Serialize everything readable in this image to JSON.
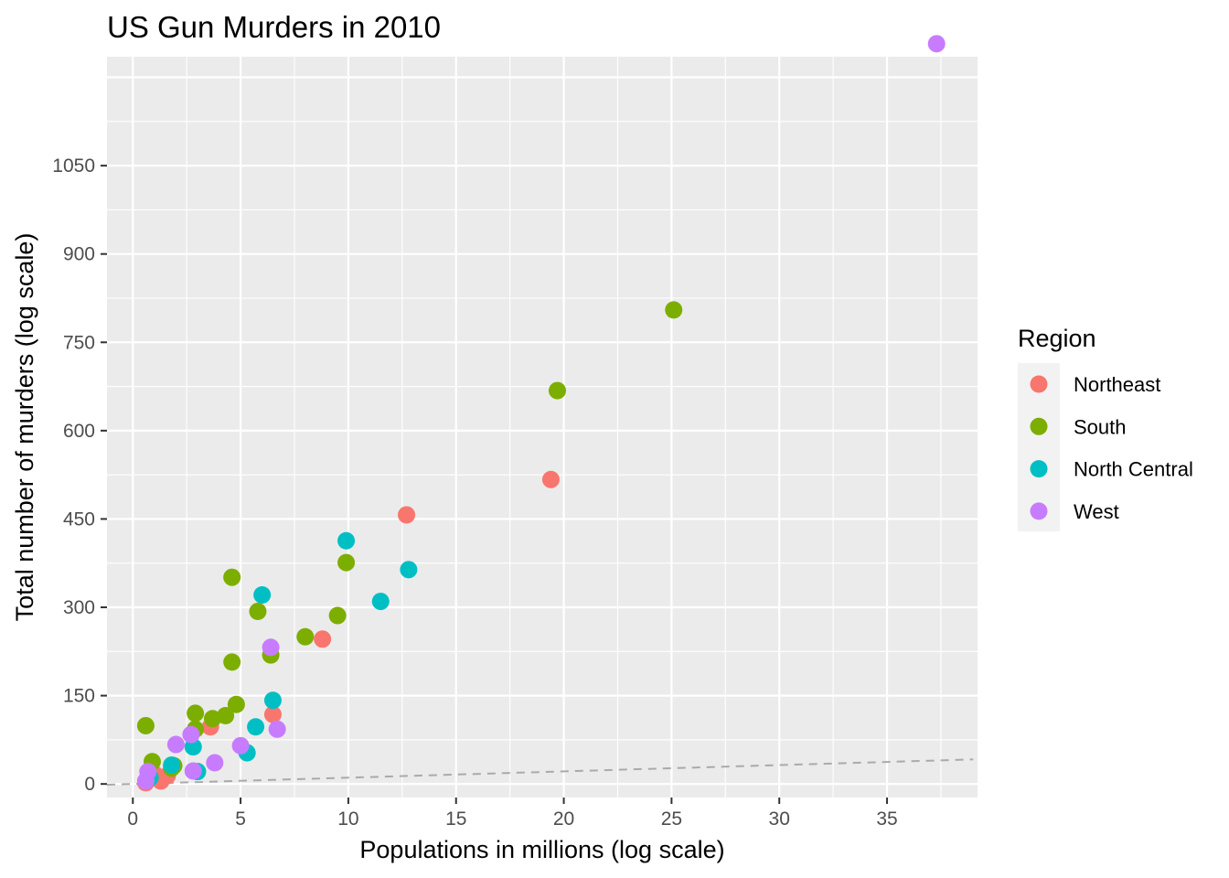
{
  "chart_data": {
    "type": "scatter",
    "title": "US Gun Murders in 2010",
    "xlabel": "Populations in millions (log scale)",
    "ylabel": "Total number of murders (log scale)",
    "xlim": [
      -1.2,
      39.2
    ],
    "ylim": [
      -23,
      1235
    ],
    "x_ticks": [
      0,
      5,
      10,
      15,
      20,
      25,
      30,
      35
    ],
    "y_ticks": [
      0,
      150,
      300,
      450,
      600,
      750,
      900,
      1050
    ],
    "grid": true,
    "panel_background": "#ebebeb",
    "reference_line": {
      "type": "dashed",
      "color": "#aaaaaa",
      "intercept": 0,
      "slope": 1.07
    },
    "legend": {
      "title": "Region",
      "placement": "right",
      "entries": [
        {
          "label": "Northeast",
          "color": "#F8766D"
        },
        {
          "label": "South",
          "color": "#7CAE00"
        },
        {
          "label": "North Central",
          "color": "#00BFC4"
        },
        {
          "label": "West",
          "color": "#C77CFF"
        }
      ]
    },
    "series": [
      {
        "name": "Northeast",
        "color": "#F8766D",
        "points": [
          {
            "x": 0.6,
            "y": 2
          },
          {
            "x": 0.6,
            "y": 5
          },
          {
            "x": 1.0,
            "y": 17
          },
          {
            "x": 1.3,
            "y": 5
          },
          {
            "x": 1.6,
            "y": 14
          },
          {
            "x": 3.6,
            "y": 97
          },
          {
            "x": 6.5,
            "y": 118
          },
          {
            "x": 8.8,
            "y": 246
          },
          {
            "x": 12.7,
            "y": 457
          },
          {
            "x": 19.4,
            "y": 517
          }
        ]
      },
      {
        "name": "South",
        "color": "#7CAE00",
        "points": [
          {
            "x": 0.6,
            "y": 99
          },
          {
            "x": 0.9,
            "y": 38
          },
          {
            "x": 1.8,
            "y": 27
          },
          {
            "x": 1.9,
            "y": 31
          },
          {
            "x": 2.9,
            "y": 93
          },
          {
            "x": 2.9,
            "y": 120
          },
          {
            "x": 3.7,
            "y": 111
          },
          {
            "x": 4.3,
            "y": 116
          },
          {
            "x": 4.6,
            "y": 351
          },
          {
            "x": 4.6,
            "y": 207
          },
          {
            "x": 4.8,
            "y": 135
          },
          {
            "x": 5.8,
            "y": 293
          },
          {
            "x": 6.4,
            "y": 219
          },
          {
            "x": 8.0,
            "y": 250
          },
          {
            "x": 9.5,
            "y": 286
          },
          {
            "x": 9.9,
            "y": 376
          },
          {
            "x": 19.7,
            "y": 668
          },
          {
            "x": 25.1,
            "y": 805
          }
        ]
      },
      {
        "name": "North Central",
        "color": "#00BFC4",
        "points": [
          {
            "x": 0.7,
            "y": 8
          },
          {
            "x": 0.8,
            "y": 11
          },
          {
            "x": 1.8,
            "y": 32
          },
          {
            "x": 2.8,
            "y": 63
          },
          {
            "x": 3.0,
            "y": 21
          },
          {
            "x": 5.3,
            "y": 53
          },
          {
            "x": 5.7,
            "y": 97
          },
          {
            "x": 6.0,
            "y": 321
          },
          {
            "x": 6.5,
            "y": 142
          },
          {
            "x": 9.9,
            "y": 413
          },
          {
            "x": 11.5,
            "y": 310
          },
          {
            "x": 12.8,
            "y": 364
          }
        ]
      },
      {
        "name": "West",
        "color": "#C77CFF",
        "points": [
          {
            "x": 0.6,
            "y": 5
          },
          {
            "x": 0.7,
            "y": 21
          },
          {
            "x": 2.0,
            "y": 67
          },
          {
            "x": 2.7,
            "y": 84
          },
          {
            "x": 2.8,
            "y": 22
          },
          {
            "x": 3.8,
            "y": 36
          },
          {
            "x": 5.0,
            "y": 65
          },
          {
            "x": 6.4,
            "y": 232
          },
          {
            "x": 6.7,
            "y": 93
          },
          {
            "x": 37.3,
            "y": 1257
          }
        ]
      }
    ]
  }
}
